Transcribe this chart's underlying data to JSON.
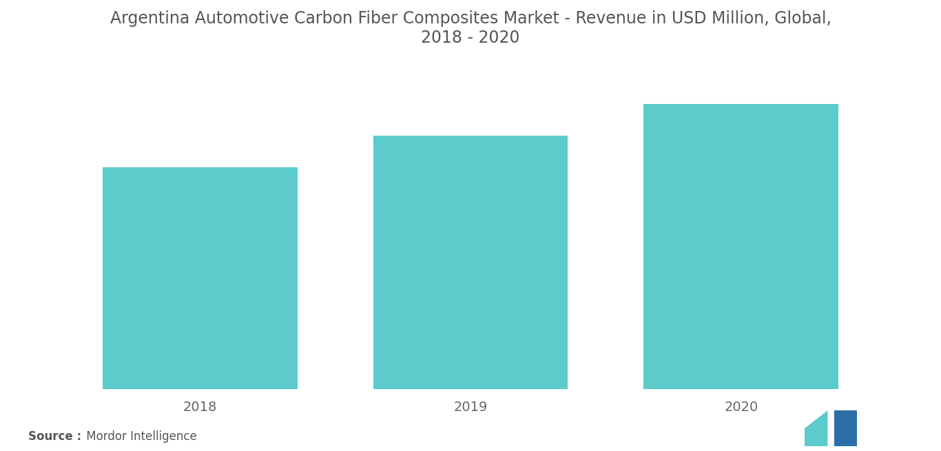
{
  "categories": [
    "2018",
    "2019",
    "2020"
  ],
  "values": [
    3.5,
    4.0,
    4.5
  ],
  "bar_color": "#5BCBCB",
  "title_line1": "Argentina Automotive Carbon Fiber Composites Market - Revenue in USD Million, Global,",
  "title_line2": "2018 - 2020",
  "title_fontsize": 17,
  "title_color": "#555555",
  "source_bold": "Source :",
  "source_text": " Mordor Intelligence",
  "source_fontsize": 12,
  "source_color": "#555555",
  "tick_label_fontsize": 14,
  "tick_label_color": "#666666",
  "background_color": "#ffffff",
  "bar_width": 0.72,
  "ylim": [
    0,
    5.2
  ],
  "logo_teal": "#5BCBCB",
  "logo_dark": "#2B6EA8"
}
